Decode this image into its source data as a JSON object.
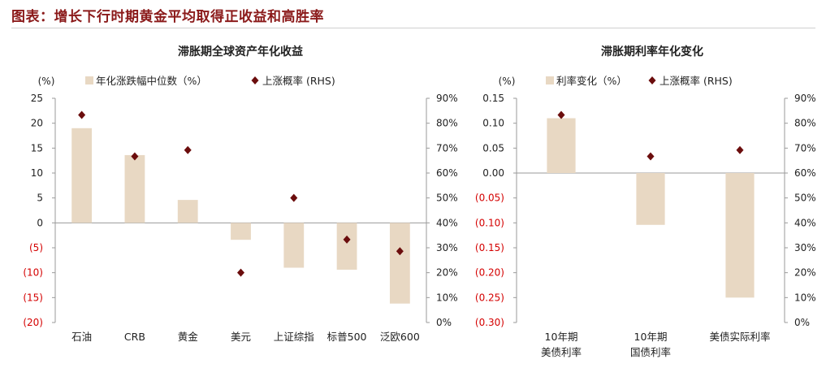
{
  "header": {
    "title": "图表：增长下行时期黄金平均取得正收益和高胜率"
  },
  "colors": {
    "bar": "#e8d8c3",
    "marker": "#6b0d0d",
    "negative_tick": "#d40000",
    "axis": "#9a9a9a"
  },
  "chart_data": [
    {
      "type": "bar",
      "title": "滞胀期全球资产年化收益",
      "unit_label": "(%)",
      "categories": [
        [
          "石油"
        ],
        [
          "CRB"
        ],
        [
          "黄金"
        ],
        [
          "美元"
        ],
        [
          "上证综指"
        ],
        [
          "标普500"
        ],
        [
          "泛欧600"
        ]
      ],
      "series": [
        {
          "name": "年化涨跌幅中位数（%）",
          "kind": "bar",
          "axis": "left",
          "values": [
            19,
            13.6,
            4.6,
            -3.4,
            -9,
            -9.4,
            -16.2
          ]
        },
        {
          "name": "上涨概率 (RHS)",
          "kind": "marker",
          "axis": "right",
          "values": [
            0.833,
            0.667,
            0.692,
            0.2,
            0.5,
            0.333,
            0.286
          ]
        }
      ],
      "ylim": [
        -20,
        25
      ],
      "yticks": [
        "25",
        "20",
        "15",
        "10",
        "5",
        "0",
        "(5)",
        "(10)",
        "(15)",
        "(20)"
      ],
      "ytick_values": [
        25,
        20,
        15,
        10,
        5,
        0,
        -5,
        -10,
        -15,
        -20
      ],
      "y2lim": [
        0,
        0.9
      ],
      "y2ticks": [
        "90%",
        "80%",
        "70%",
        "60%",
        "50%",
        "40%",
        "30%",
        "20%",
        "10%",
        "0%"
      ],
      "y2tick_values": [
        0.9,
        0.8,
        0.7,
        0.6,
        0.5,
        0.4,
        0.3,
        0.2,
        0.1,
        0
      ],
      "legend": "top"
    },
    {
      "type": "bar",
      "title": "滞胀期利率年化变化",
      "unit_label": "(%)",
      "categories": [
        [
          "10年期",
          "美债利率"
        ],
        [
          "10年期",
          "国债利率"
        ],
        [
          "美债实际利率"
        ]
      ],
      "series": [
        {
          "name": "利率变化（%）",
          "kind": "bar",
          "axis": "left",
          "values": [
            0.11,
            -0.104,
            -0.25
          ]
        },
        {
          "name": "上涨概率 (RHS)",
          "kind": "marker",
          "axis": "right",
          "values": [
            0.833,
            0.667,
            0.692
          ]
        }
      ],
      "ylim": [
        -0.3,
        0.15
      ],
      "yticks": [
        "0.15",
        "0.10",
        "0.05",
        "0.00",
        "(0.05)",
        "(0.10)",
        "(0.15)",
        "(0.20)",
        "(0.25)",
        "(0.30)"
      ],
      "ytick_values": [
        0.15,
        0.1,
        0.05,
        0.0,
        -0.05,
        -0.1,
        -0.15,
        -0.2,
        -0.25,
        -0.3
      ],
      "y2lim": [
        0,
        0.9
      ],
      "y2ticks": [
        "90%",
        "80%",
        "70%",
        "60%",
        "50%",
        "40%",
        "30%",
        "20%",
        "10%",
        "0%"
      ],
      "y2tick_values": [
        0.9,
        0.8,
        0.7,
        0.6,
        0.5,
        0.4,
        0.3,
        0.2,
        0.1,
        0
      ],
      "legend": "top"
    }
  ]
}
